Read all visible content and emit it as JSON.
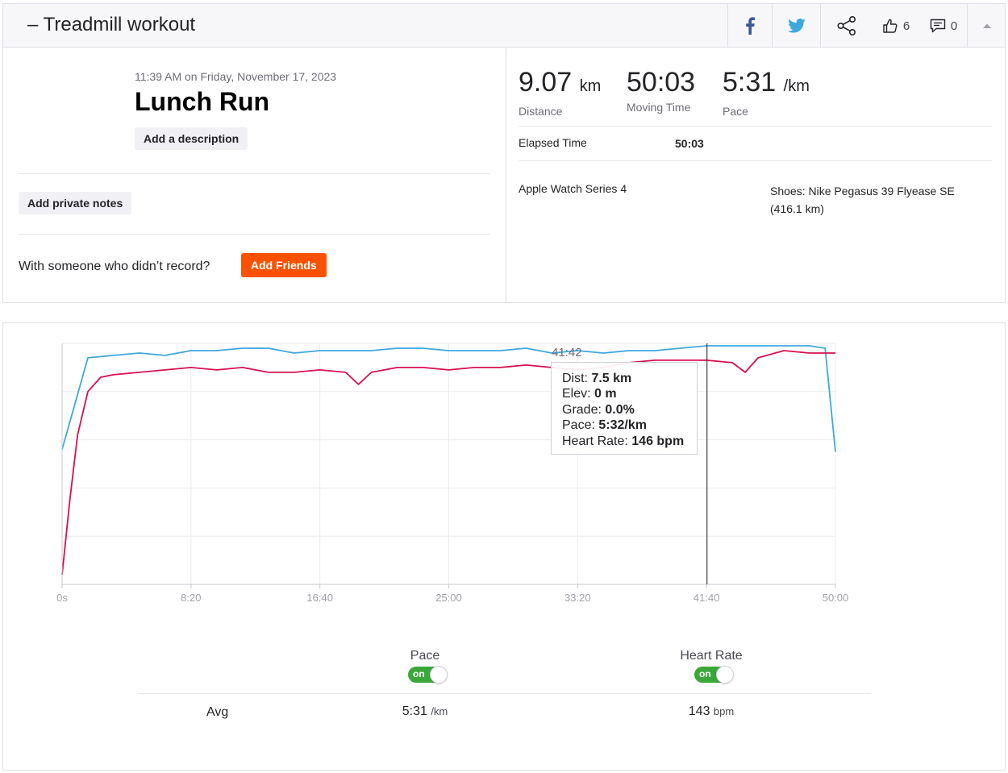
{
  "header": {
    "title": "– Treadmill workout",
    "kudos_count": "6",
    "comments_count": "0",
    "icons": [
      "facebook-icon",
      "twitter-icon",
      "share-icon",
      "thumbs-up-icon",
      "comment-icon",
      "caret-up-icon"
    ]
  },
  "activity": {
    "datetime": "11:39 AM on Friday, November 17, 2023",
    "name": "Lunch Run",
    "add_description_label": "Add a description",
    "add_private_notes_label": "Add private notes",
    "with_someone_text": "With someone who didn’t record?",
    "add_friends_label": "Add Friends"
  },
  "stats": {
    "distance": {
      "value": "9.07",
      "unit": "km",
      "label": "Distance"
    },
    "moving_time": {
      "value": "50:03",
      "label": "Moving Time"
    },
    "pace": {
      "value": "5:31",
      "unit": "/km",
      "label": "Pace"
    },
    "elapsed_label": "Elapsed Time",
    "elapsed_value": "50:03",
    "device": "Apple Watch Series 4",
    "shoes": "Shoes: Nike Pegasus 39 Flyease SE (416.1 km)"
  },
  "colors": {
    "brand_orange": "#fc5200",
    "pace_line": "#3ea8dd",
    "heart_rate_line": "#d6114f",
    "toggle_on": "#3aa839"
  },
  "chart_data": {
    "type": "line",
    "x_unit": "seconds",
    "xlim": [
      0,
      3000
    ],
    "x_ticks": [
      "0s",
      "8:20",
      "16:40",
      "25:00",
      "33:20",
      "41:40",
      "50:00"
    ],
    "cursor_x": 2502,
    "grid": true,
    "series": [
      {
        "name": "Pace",
        "x": [
          0,
          100,
          200,
          300,
          400,
          500,
          600,
          700,
          800,
          900,
          1000,
          1100,
          1200,
          1300,
          1400,
          1500,
          1600,
          1700,
          1800,
          1900,
          2000,
          2100,
          2200,
          2300,
          2400,
          2500,
          2600,
          2700,
          2800,
          2900,
          2960,
          3000
        ],
        "y": [
          0.56,
          0.94,
          0.95,
          0.96,
          0.95,
          0.97,
          0.97,
          0.98,
          0.98,
          0.96,
          0.97,
          0.97,
          0.97,
          0.98,
          0.98,
          0.97,
          0.97,
          0.97,
          0.98,
          0.96,
          0.97,
          0.96,
          0.97,
          0.97,
          0.98,
          0.99,
          0.99,
          0.99,
          0.99,
          0.99,
          0.98,
          0.55
        ]
      },
      {
        "name": "Heart Rate",
        "x": [
          0,
          30,
          60,
          100,
          150,
          200,
          300,
          400,
          500,
          600,
          700,
          800,
          900,
          1000,
          1100,
          1150,
          1200,
          1300,
          1400,
          1500,
          1600,
          1700,
          1800,
          1900,
          2000,
          2100,
          2200,
          2300,
          2400,
          2500,
          2600,
          2650,
          2700,
          2800,
          2900,
          3000
        ],
        "y": [
          0.04,
          0.35,
          0.62,
          0.8,
          0.86,
          0.87,
          0.88,
          0.89,
          0.9,
          0.89,
          0.9,
          0.88,
          0.88,
          0.89,
          0.88,
          0.83,
          0.88,
          0.9,
          0.9,
          0.89,
          0.9,
          0.9,
          0.91,
          0.9,
          0.89,
          0.9,
          0.92,
          0.93,
          0.93,
          0.93,
          0.92,
          0.88,
          0.94,
          0.97,
          0.96,
          0.96
        ]
      }
    ]
  },
  "tooltip": {
    "time": "41:42",
    "dist_label": "Dist:",
    "dist_value": "7.5 km",
    "elev_label": "Elev:",
    "elev_value": "0 m",
    "grade_label": "Grade:",
    "grade_value": "0.0%",
    "pace_label": "Pace:",
    "pace_value": "5:32/km",
    "hr_label": "Heart Rate:",
    "hr_value": "146 bpm"
  },
  "legend": {
    "pace_label": "Pace",
    "hr_label": "Heart Rate",
    "toggle_text": "on"
  },
  "averages": {
    "label": "Avg",
    "pace_value": "5:31",
    "pace_unit": "/km",
    "hr_value": "143",
    "hr_unit": "bpm"
  }
}
